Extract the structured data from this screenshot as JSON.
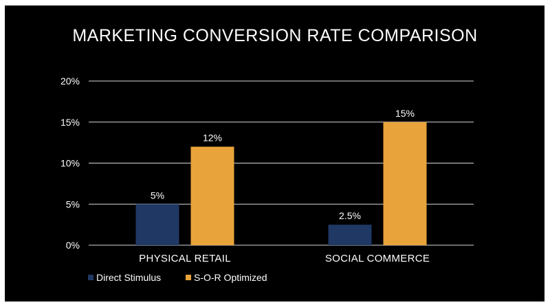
{
  "chart_data": {
    "type": "bar",
    "title": "MARKETING CONVERSION RATE COMPARISON",
    "categories": [
      "PHYSICAL RETAIL",
      "SOCIAL COMMERCE"
    ],
    "series": [
      {
        "name": "Direct Stimulus",
        "values": [
          5,
          2.5
        ],
        "labels": [
          "5%",
          "2.5%"
        ],
        "color": "#1f3864"
      },
      {
        "name": "S-O-R Optimized",
        "values": [
          12,
          15
        ],
        "labels": [
          "12%",
          "15%"
        ],
        "color": "#e8a33a"
      }
    ],
    "y_ticks": [
      0,
      5,
      10,
      15,
      20
    ],
    "y_tick_labels": [
      "0%",
      "5%",
      "10%",
      "15%",
      "20%"
    ],
    "ylim": [
      0,
      20
    ],
    "xlabel": "",
    "ylabel": "",
    "grid": true,
    "legend_position": "bottom-left",
    "background": "#000000",
    "text_color": "#ffffff",
    "grid_color": "#d9d9d9"
  }
}
